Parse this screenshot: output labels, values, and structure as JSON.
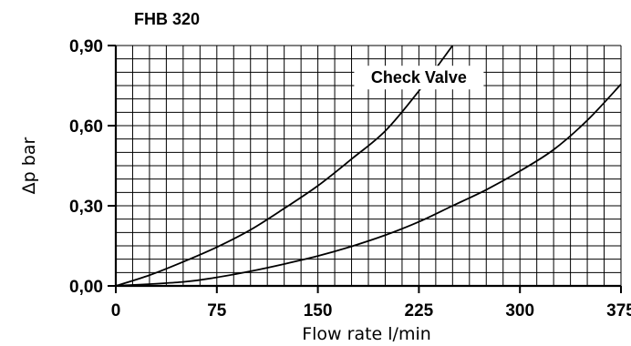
{
  "chart_data": {
    "type": "line",
    "title": "FHB 320",
    "xlabel": "Flow rate l/min",
    "ylabel": "Δp bar",
    "xlim": [
      0,
      375
    ],
    "ylim": [
      0,
      0.9
    ],
    "grid": true,
    "x_ticks": [
      {
        "value": 0,
        "label": "0"
      },
      {
        "value": 75,
        "label": "75"
      },
      {
        "value": 150,
        "label": "150"
      },
      {
        "value": 225,
        "label": "225"
      },
      {
        "value": 300,
        "label": "300"
      },
      {
        "value": 375,
        "label": "375"
      }
    ],
    "y_ticks": [
      {
        "value": 0,
        "label": "0,00"
      },
      {
        "value": 0.3,
        "label": "0,30"
      },
      {
        "value": 0.6,
        "label": "0,60"
      },
      {
        "value": 0.9,
        "label": "0,90"
      }
    ],
    "annotation": {
      "text": "Check Valve",
      "x": 225,
      "y": 0.78
    },
    "series": [
      {
        "x": [
          0,
          25,
          50,
          75,
          100,
          125,
          150,
          175,
          200,
          225,
          250
        ],
        "y": [
          0,
          0.04,
          0.09,
          0.145,
          0.21,
          0.29,
          0.375,
          0.475,
          0.58,
          0.73,
          0.9
        ]
      },
      {
        "x": [
          0,
          50,
          75,
          100,
          125,
          150,
          175,
          200,
          225,
          250,
          275,
          300,
          325,
          350,
          375
        ],
        "y": [
          0,
          0.015,
          0.032,
          0.055,
          0.082,
          0.112,
          0.148,
          0.19,
          0.24,
          0.3,
          0.36,
          0.43,
          0.51,
          0.62,
          0.755
        ]
      }
    ]
  }
}
